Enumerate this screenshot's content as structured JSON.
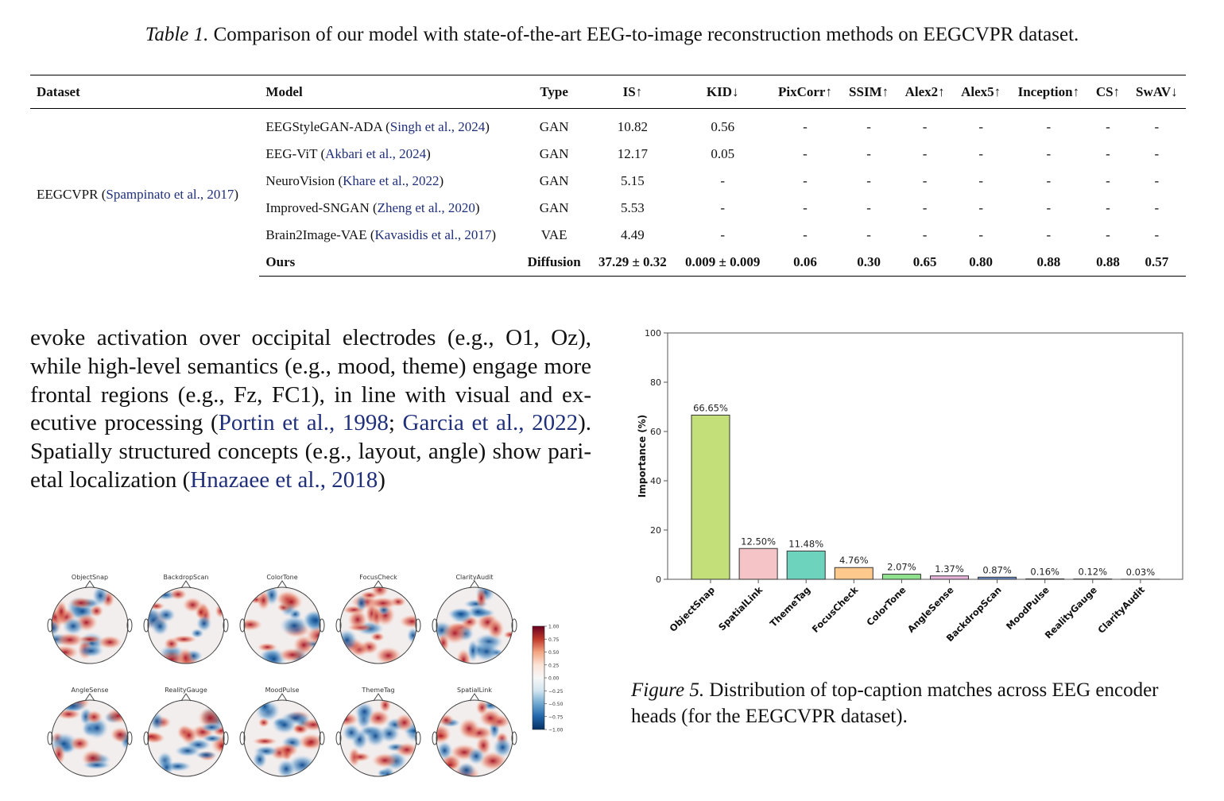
{
  "table": {
    "caption_label": "Table 1.",
    "caption_text": "Comparison of our model with state-of-the-art EEG-to-image reconstruction methods on EEGCVPR dataset.",
    "headers": [
      "Dataset",
      "Model",
      "Type",
      "IS↑",
      "KID↓",
      "PixCorr↑",
      "SSIM↑",
      "Alex2↑",
      "Alex5↑",
      "Inception↑",
      "CS↑",
      "SwAV↓"
    ],
    "dataset_name": "EEGCVPR",
    "dataset_cite": "Spampinato et al., 2017",
    "rows": [
      {
        "model": "EEGStyleGAN-ADA",
        "cite": "Singh et al., 2024",
        "type": "GAN",
        "metrics": [
          "10.82",
          "0.56",
          "-",
          "-",
          "-",
          "-",
          "-",
          "-",
          "-"
        ]
      },
      {
        "model": "EEG-ViT",
        "cite": "Akbari et al., 2024",
        "type": "GAN",
        "metrics": [
          "12.17",
          "0.05",
          "-",
          "-",
          "-",
          "-",
          "-",
          "-",
          "-"
        ]
      },
      {
        "model": "NeuroVision",
        "cite": "Khare et al., 2022",
        "type": "GAN",
        "metrics": [
          "5.15",
          "-",
          "-",
          "-",
          "-",
          "-",
          "-",
          "-",
          "-"
        ]
      },
      {
        "model": "Improved-SNGAN",
        "cite": "Zheng et al., 2020",
        "type": "GAN",
        "metrics": [
          "5.53",
          "-",
          "-",
          "-",
          "-",
          "-",
          "-",
          "-",
          "-"
        ]
      },
      {
        "model": "Brain2Image-VAE",
        "cite": "Kavasidis et al., 2017",
        "type": "VAE",
        "metrics": [
          "4.49",
          "-",
          "-",
          "-",
          "-",
          "-",
          "-",
          "-",
          "-"
        ]
      },
      {
        "model": "Ours",
        "cite": "",
        "type": "Diffusion",
        "metrics": [
          "37.29 ± 0.32",
          "0.009 ± 0.009",
          "0.06",
          "0.30",
          "0.65",
          "0.80",
          "0.88",
          "0.88",
          "0.57"
        ]
      }
    ]
  },
  "body": {
    "line1": "evoke activation over occipital electrodes (e.g., O1, Oz),",
    "line2": "while high-level semantics (e.g., mood, theme) engage more",
    "line3": "frontal regions (e.g., Fz, FC1), in line with visual and ex-",
    "line4_a": "ecutive processing (",
    "line4_cite1": "Portin et al., 1998",
    "line4_b": "; ",
    "line4_cite2": "Garcia et al., 2022",
    "line4_c": ").",
    "line5": "Spatially structured concepts (e.g., layout, angle) show pari-",
    "line6_a": "etal localization (",
    "line6_cite": "Hnazaee et al., 2018",
    "line6_b": ")"
  },
  "topomaps": {
    "titles": [
      "ObjectSnap",
      "BackdropScan",
      "ColorTone",
      "FocusCheck",
      "ClarityAudit",
      "AngleSense",
      "RealityGauge",
      "MoodPulse",
      "ThemeTag",
      "SpatialLink"
    ],
    "colorbar_ticks": [
      "1.00",
      "0.75",
      "0.50",
      "0.25",
      "0.00",
      "−0.25",
      "−0.50",
      "−0.75",
      "−1.00"
    ]
  },
  "chart_data": {
    "type": "bar",
    "categories": [
      "ObjectSnap",
      "SpatialLink",
      "ThemeTag",
      "FocusCheck",
      "ColorTone",
      "AngleSense",
      "BackdropScan",
      "MoodPulse",
      "RealityGauge",
      "ClarityAudit"
    ],
    "values": [
      66.65,
      12.5,
      11.48,
      4.76,
      2.07,
      1.37,
      0.87,
      0.16,
      0.12,
      0.03
    ],
    "data_labels": [
      "66.65%",
      "12.50%",
      "11.48%",
      "4.76%",
      "2.07%",
      "1.37%",
      "0.87%",
      "0.16%",
      "0.12%",
      "0.03%"
    ],
    "colors": [
      "#c2df7a",
      "#f5c4c6",
      "#6ed3bd",
      "#fdc98d",
      "#8fe38f",
      "#eab5dd",
      "#6d8fce",
      "#a39689",
      "#c3c3c3",
      "#e2e2a0"
    ],
    "ylabel": "Importance (%)",
    "ylim": [
      0,
      100
    ],
    "yticks": [
      0,
      20,
      40,
      60,
      80,
      100
    ],
    "grid": false
  },
  "figure": {
    "caption_label": "Figure 5.",
    "caption_line1": "Distribution of top-caption matches across EEG encoder",
    "caption_line2": "heads (for the EEGCVPR dataset)."
  }
}
